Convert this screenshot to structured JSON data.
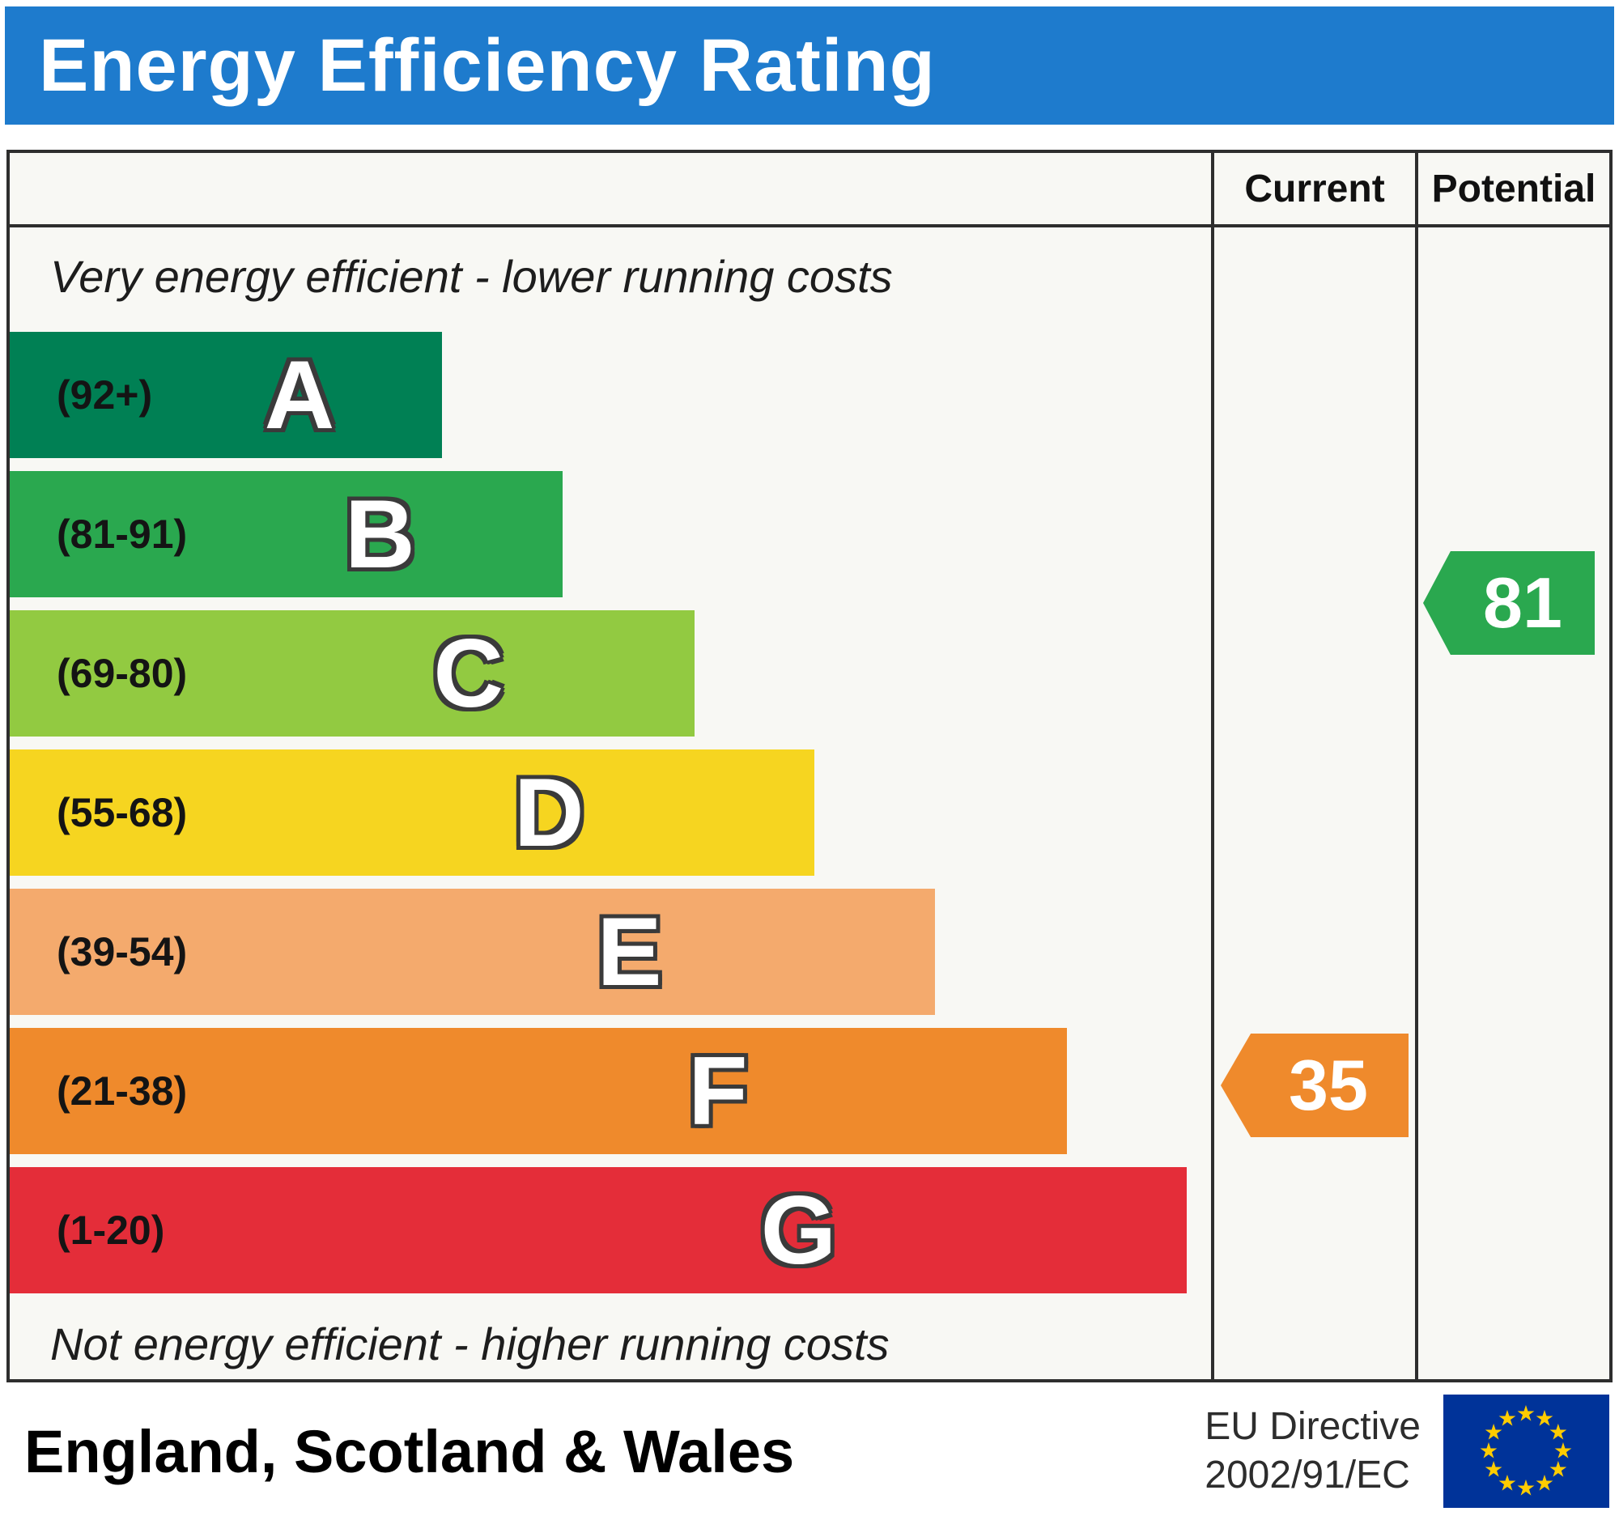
{
  "header": {
    "title": "Energy Efficiency Rating",
    "bg_color": "#1e7bcd"
  },
  "columns": {
    "current_label": "Current",
    "potential_label": "Potential"
  },
  "notes": {
    "top": "Very energy efficient - lower running costs",
    "bottom": "Not energy efficient - higher running costs"
  },
  "bands": [
    {
      "letter": "A",
      "range": "(92+)",
      "color": "#008054",
      "width_pct": 36
    },
    {
      "letter": "B",
      "range": "(81-91)",
      "color": "#2aa84f",
      "width_pct": 46
    },
    {
      "letter": "C",
      "range": "(69-80)",
      "color": "#92ca41",
      "width_pct": 57
    },
    {
      "letter": "D",
      "range": "(55-68)",
      "color": "#f6d520",
      "width_pct": 67
    },
    {
      "letter": "E",
      "range": "(39-54)",
      "color": "#f4aa6d",
      "width_pct": 77
    },
    {
      "letter": "F",
      "range": "(21-38)",
      "color": "#ef8a2c",
      "width_pct": 88
    },
    {
      "letter": "G",
      "range": "(1-20)",
      "color": "#e42d39",
      "width_pct": 98
    }
  ],
  "current": {
    "value": "35",
    "band": "F",
    "color": "#ef8a2c"
  },
  "potential": {
    "value": "81",
    "band": "B",
    "color": "#2aa84f"
  },
  "footer": {
    "region": "England, Scotland & Wales",
    "directive_line1": "EU Directive",
    "directive_line2": "2002/91/EC"
  },
  "eu_flag": {
    "bg_color": "#003399",
    "star_color": "#ffcc00"
  },
  "chart_data": {
    "type": "bar",
    "title": "Energy Efficiency Rating",
    "categories": [
      "A (92+)",
      "B (81-91)",
      "C (69-80)",
      "D (55-68)",
      "E (39-54)",
      "F (21-38)",
      "G (1-20)"
    ],
    "values": [
      36,
      46,
      57,
      67,
      77,
      88,
      98
    ],
    "bar_colors": [
      "#008054",
      "#2aa84f",
      "#92ca41",
      "#f6d520",
      "#f4aa6d",
      "#ef8a2c",
      "#e42d39"
    ],
    "current_rating": 35,
    "current_band": "F",
    "potential_rating": 81,
    "potential_band": "B",
    "annotations": [
      "Very energy efficient - lower running costs",
      "Not energy efficient - higher running costs"
    ],
    "region": "England, Scotland & Wales",
    "directive": "EU Directive 2002/91/EC",
    "legend_position": "none",
    "grid": false
  }
}
